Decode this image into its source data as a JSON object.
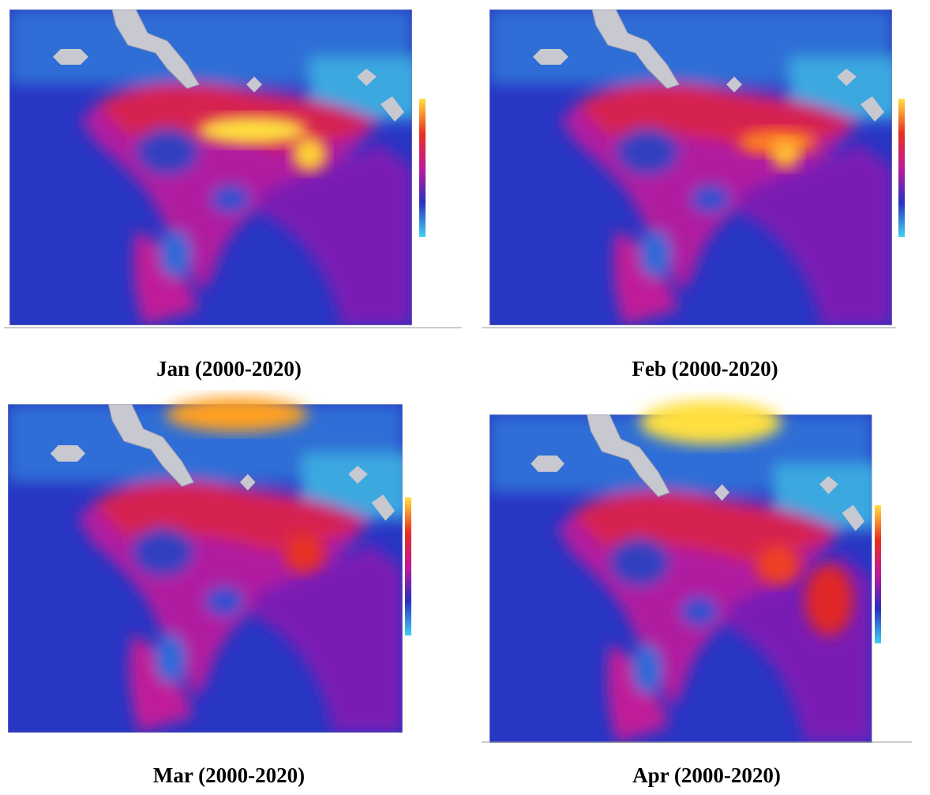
{
  "figure": {
    "panels": [
      {
        "caption": "Jan (2000-2020)"
      },
      {
        "caption": "Feb (2000-2020)"
      },
      {
        "caption": "Mar (2000-2020)"
      },
      {
        "caption": "Apr (2000-2020)"
      }
    ]
  }
}
